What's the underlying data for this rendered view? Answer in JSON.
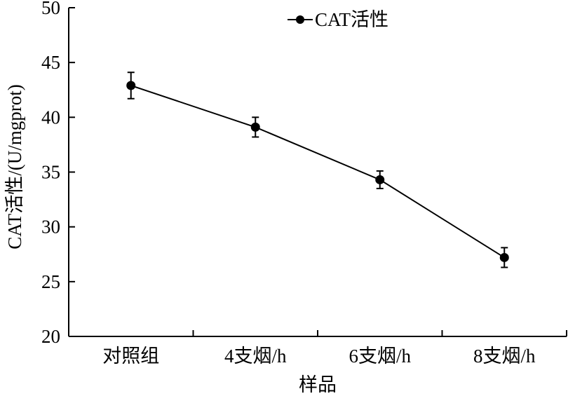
{
  "chart_data": {
    "type": "line",
    "categories": [
      "对照组",
      "4支烟/h",
      "6支烟/h",
      "8支烟/h"
    ],
    "series": [
      {
        "name": "CAT活性",
        "values": [
          42.9,
          39.1,
          34.3,
          27.2
        ],
        "error": [
          1.2,
          0.9,
          0.8,
          0.9
        ],
        "color": "#000000"
      }
    ],
    "xlabel": "样品",
    "ylabel": "CAT活性/(U/mgprot)",
    "ylim": [
      20,
      50
    ],
    "yticks": [
      20,
      25,
      30,
      35,
      40,
      45,
      50
    ],
    "ytick_labels": [
      "20",
      "25",
      "30",
      "35",
      "40",
      "45",
      "50"
    ],
    "grid": false,
    "legend_position": "top-right"
  }
}
